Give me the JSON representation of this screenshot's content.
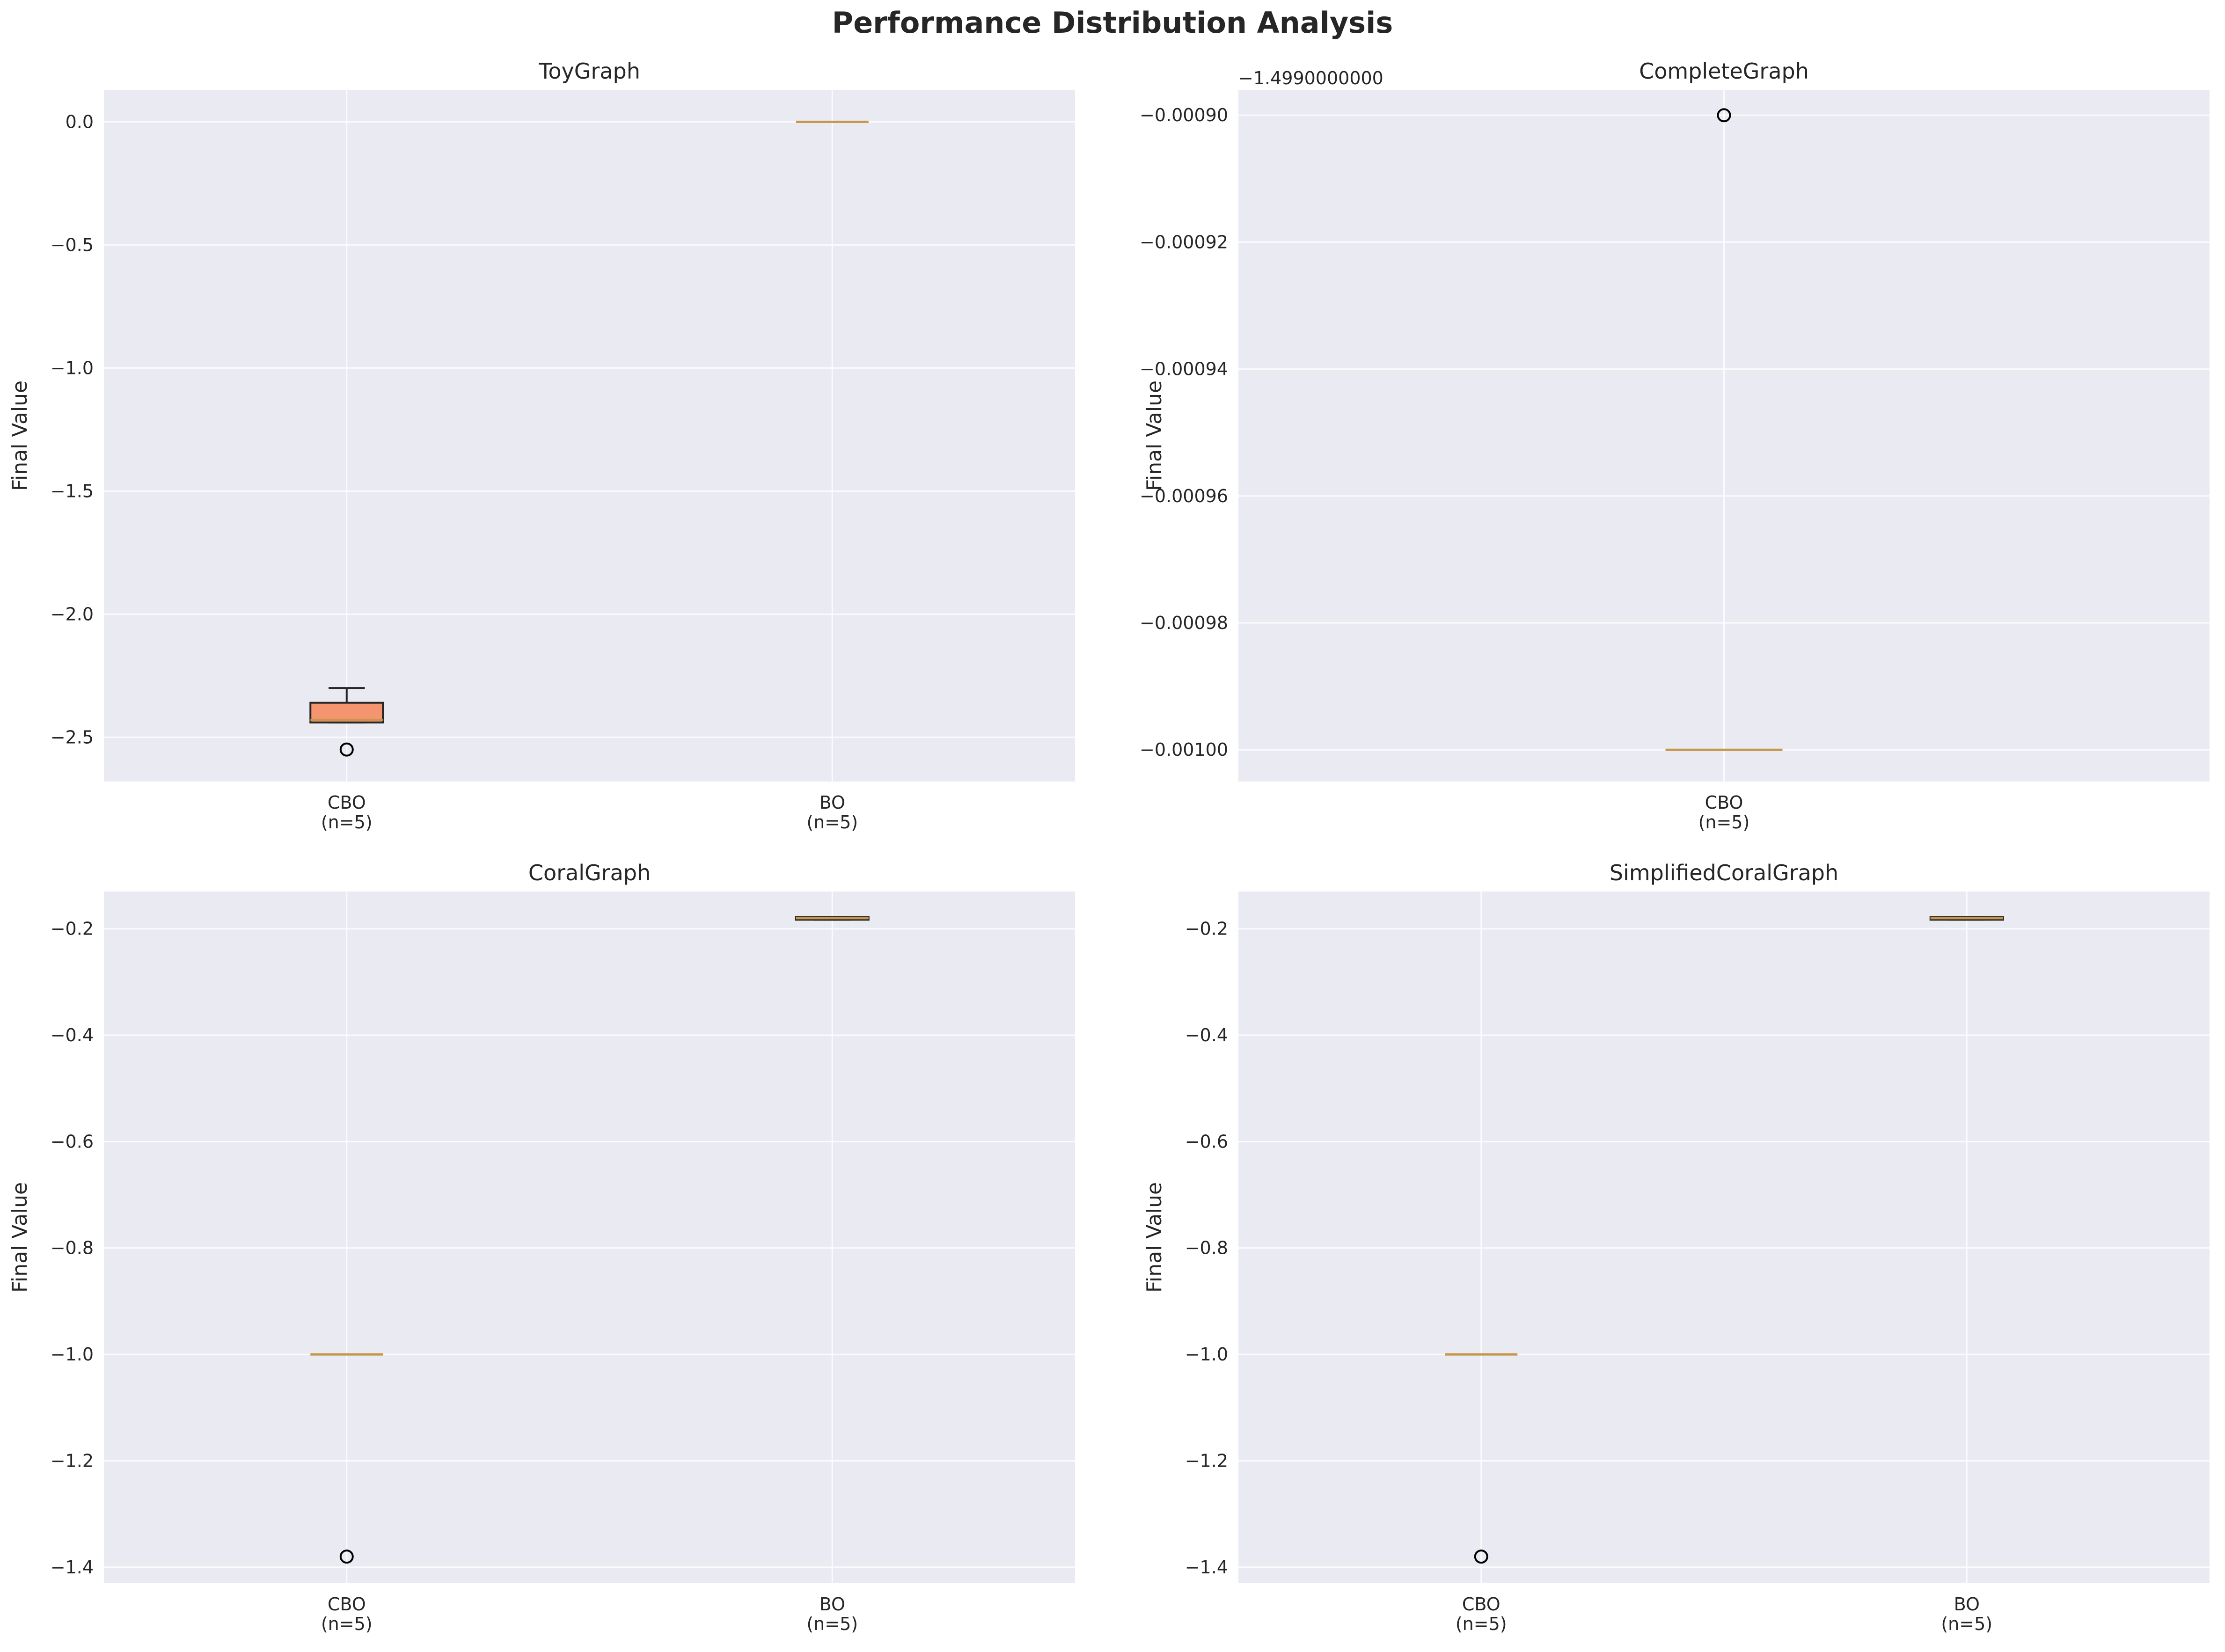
{
  "title": "Performance Distribution Analysis",
  "colors": {
    "panel_bg": "#eaeaf2",
    "grid": "#ffffff",
    "box_fill": "#f4956f",
    "median": "#c7964a",
    "outline": "#262626"
  },
  "chart_data": [
    {
      "type": "box",
      "title": "ToyGraph",
      "ylabel": "Final Value",
      "categories": [
        "CBO\n(n=5)",
        "BO\n(n=5)"
      ],
      "ylim": [
        -2.68,
        0.13
      ],
      "yticks": [
        0.0,
        -0.5,
        -1.0,
        -1.5,
        -2.0,
        -2.5
      ],
      "ytick_labels": [
        "0.0",
        "−0.5",
        "−1.0",
        "−1.5",
        "−2.0",
        "−2.5"
      ],
      "offset_text": "",
      "grid": true,
      "boxes": [
        {
          "category": "CBO\n(n=5)",
          "q1": -2.44,
          "median": -2.43,
          "q3": -2.36,
          "whisker_low": -2.44,
          "whisker_high": -2.3,
          "outliers": [
            -2.55
          ]
        },
        {
          "category": "BO\n(n=5)",
          "q1": 0.0,
          "median": 0.0,
          "q3": 0.0,
          "whisker_low": 0.0,
          "whisker_high": 0.0,
          "outliers": []
        }
      ]
    },
    {
      "type": "box",
      "title": "CompleteGraph",
      "ylabel": "Final Value",
      "categories": [
        "CBO\n(n=5)"
      ],
      "ylim": [
        -0.001005,
        -0.000896
      ],
      "yticks": [
        -0.0009,
        -0.00092,
        -0.00094,
        -0.00096,
        -0.00098,
        -0.001
      ],
      "ytick_labels": [
        "−0.00090",
        "−0.00092",
        "−0.00094",
        "−0.00096",
        "−0.00098",
        "−0.00100"
      ],
      "offset_text": "−1.4990000000",
      "grid": true,
      "boxes": [
        {
          "category": "CBO\n(n=5)",
          "q1": -0.001,
          "median": -0.001,
          "q3": -0.001,
          "whisker_low": -0.001,
          "whisker_high": -0.001,
          "outliers": [
            -0.0009
          ]
        }
      ]
    },
    {
      "type": "box",
      "title": "CoralGraph",
      "ylabel": "Final Value",
      "categories": [
        "CBO\n(n=5)",
        "BO\n(n=5)"
      ],
      "ylim": [
        -1.43,
        -0.13
      ],
      "yticks": [
        -0.2,
        -0.4,
        -0.6,
        -0.8,
        -1.0,
        -1.2,
        -1.4
      ],
      "ytick_labels": [
        "−0.2",
        "−0.4",
        "−0.6",
        "−0.8",
        "−1.0",
        "−1.2",
        "−1.4"
      ],
      "offset_text": "",
      "grid": true,
      "boxes": [
        {
          "category": "CBO\n(n=5)",
          "q1": -1.0,
          "median": -1.0,
          "q3": -1.0,
          "whisker_low": -1.0,
          "whisker_high": -1.0,
          "outliers": [
            -1.38
          ]
        },
        {
          "category": "BO\n(n=5)",
          "q1": -0.183,
          "median": -0.18,
          "q3": -0.178,
          "whisker_low": -0.183,
          "whisker_high": -0.178,
          "outliers": []
        }
      ]
    },
    {
      "type": "box",
      "title": "SimplifiedCoralGraph",
      "ylabel": "Final Value",
      "categories": [
        "CBO\n(n=5)",
        "BO\n(n=5)"
      ],
      "ylim": [
        -1.43,
        -0.13
      ],
      "yticks": [
        -0.2,
        -0.4,
        -0.6,
        -0.8,
        -1.0,
        -1.2,
        -1.4
      ],
      "ytick_labels": [
        "−0.2",
        "−0.4",
        "−0.6",
        "−0.8",
        "−1.0",
        "−1.2",
        "−1.4"
      ],
      "offset_text": "",
      "grid": true,
      "boxes": [
        {
          "category": "CBO\n(n=5)",
          "q1": -1.0,
          "median": -1.0,
          "q3": -1.0,
          "whisker_low": -1.0,
          "whisker_high": -1.0,
          "outliers": [
            -1.38
          ]
        },
        {
          "category": "BO\n(n=5)",
          "q1": -0.183,
          "median": -0.18,
          "q3": -0.178,
          "whisker_low": -0.183,
          "whisker_high": -0.178,
          "outliers": []
        }
      ]
    }
  ]
}
